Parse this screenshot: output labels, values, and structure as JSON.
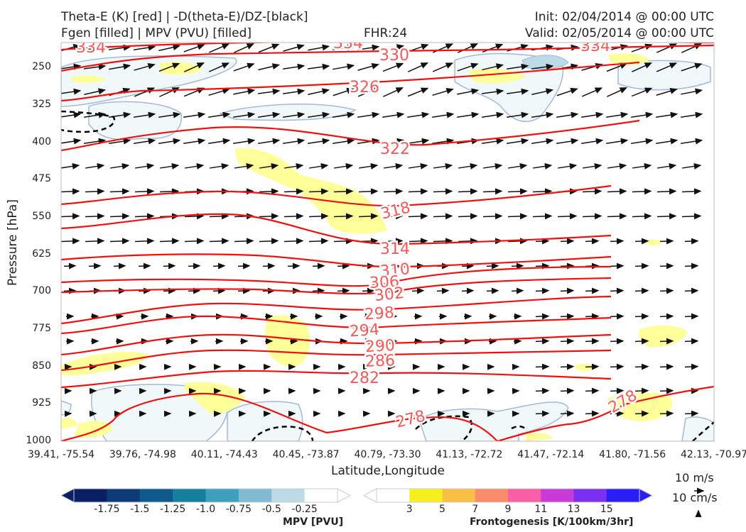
{
  "header": {
    "title_left_1": "Theta-E (K) [red] | -D(theta-E)/DZ-[black]",
    "title_left_2": "Fgen [filled] | MPV (PVU) [filled]",
    "fhr": "FHR:24",
    "init": "Init: 02/04/2014 @ 00:00 UTC",
    "valid": "Valid: 02/05/2014 @ 00:00 UTC"
  },
  "chart_data": {
    "type": "contour",
    "ylabel": "Pressure [hPa]",
    "xlabel": "Latitude,Longitude",
    "yticks": [
      "250",
      "325",
      "400",
      "475",
      "550",
      "625",
      "700",
      "775",
      "850",
      "925",
      "1000"
    ],
    "ylim": [
      1000,
      200
    ],
    "xticks": [
      "39.41, -75.54",
      "39.76, -74.98",
      "40.11, -74.43",
      "40.45, -73.87",
      "40.79, -73.30",
      "41.13, -72.72",
      "41.47, -72.14",
      "41.80, -71.56",
      "42.13, -70.97"
    ],
    "theta_e_contours": [
      {
        "value": 334,
        "label": "334"
      },
      {
        "value": 330,
        "label": "330"
      },
      {
        "value": 326,
        "label": "326"
      },
      {
        "value": 322,
        "label": "322"
      },
      {
        "value": 318,
        "label": "318"
      },
      {
        "value": 314,
        "label": "314"
      },
      {
        "value": 310,
        "label": "310"
      },
      {
        "value": 306,
        "label": "306"
      },
      {
        "value": 302,
        "label": "302"
      },
      {
        "value": 298,
        "label": "298"
      },
      {
        "value": 294,
        "label": "294"
      },
      {
        "value": 290,
        "label": "290"
      },
      {
        "value": 286,
        "label": "286"
      },
      {
        "value": 282,
        "label": "282"
      },
      {
        "value": 278,
        "label": "278"
      }
    ],
    "wind_reference": [
      "10 m/s",
      "10 cm/s"
    ],
    "mpv_colorbar": {
      "title": "MPV [PVU]",
      "labels": [
        "-1.75",
        "-1.5",
        "-1.25",
        "-1.0",
        "-0.75",
        "-0.5",
        "-0.25"
      ],
      "colors": [
        "#0b1f66",
        "#0d3b7a",
        "#0f5a8c",
        "#14809e",
        "#3da0bd",
        "#7fbcd4",
        "#bcdbe6",
        "#ffffff"
      ]
    },
    "fgen_colorbar": {
      "title": "Frontogenesis [K/100km/3hr]",
      "labels": [
        "3",
        "5",
        "7",
        "9",
        "11",
        "13",
        "15"
      ],
      "colors": [
        "#ffffff",
        "#f5f01e",
        "#fbbf45",
        "#fb8c6b",
        "#f85fa6",
        "#c93bd7",
        "#7b2ff0",
        "#2a1df5"
      ]
    },
    "colors": {
      "theta_e": "#ee1111",
      "theta_e_label": "#f05a5a",
      "fgen_fill": "#ffff99",
      "mpv_fill": "#f0f8f9",
      "mpv_line": "#a6b8d6"
    }
  }
}
